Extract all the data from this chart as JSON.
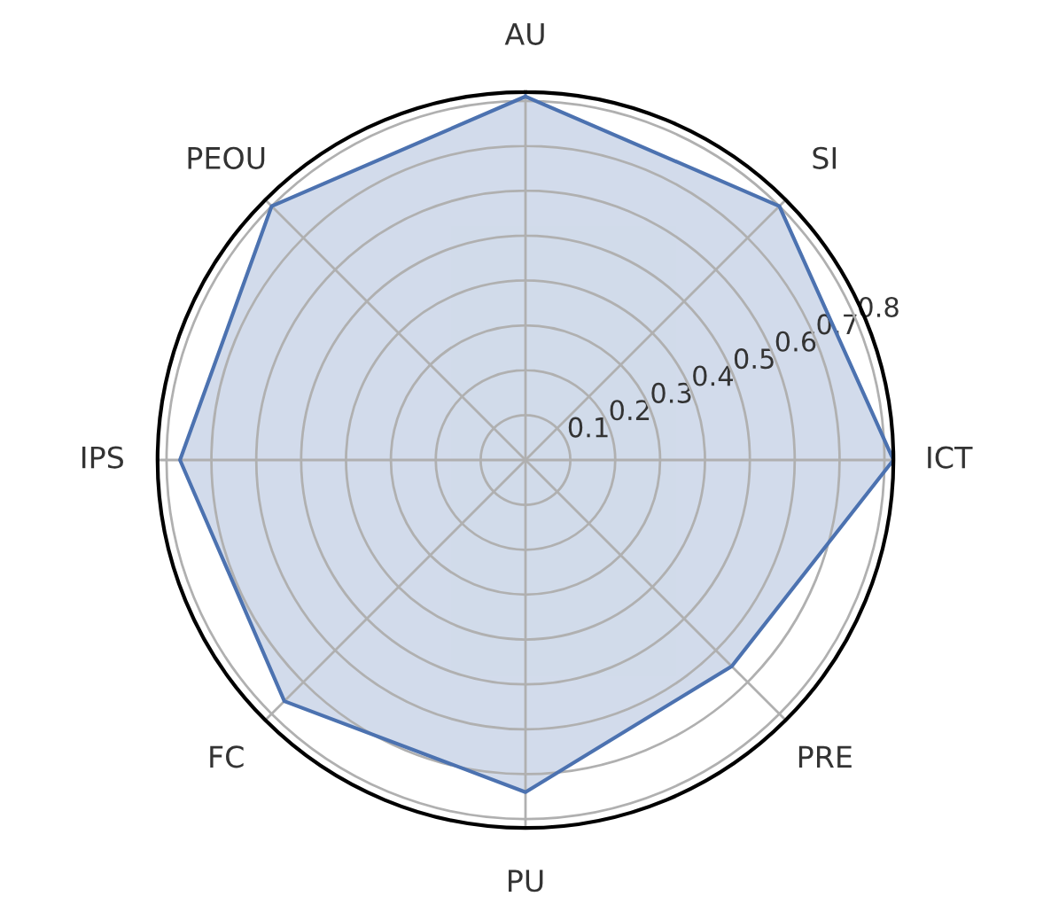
{
  "chart_data": {
    "type": "radar",
    "categories": [
      "AU",
      "SI",
      "ICT",
      "PRE",
      "PU",
      "FC",
      "IPS",
      "PEOU"
    ],
    "series": [
      {
        "color": "#4c72b0",
        "values": [
          0.81,
          0.8,
          0.82,
          0.65,
          0.74,
          0.76,
          0.77,
          0.8
        ]
      }
    ],
    "ylim": [
      0,
      0.82
    ],
    "yticks": [
      0.1,
      0.2,
      0.3,
      0.4,
      0.5,
      0.6,
      0.7,
      0.8
    ],
    "grid": true
  }
}
